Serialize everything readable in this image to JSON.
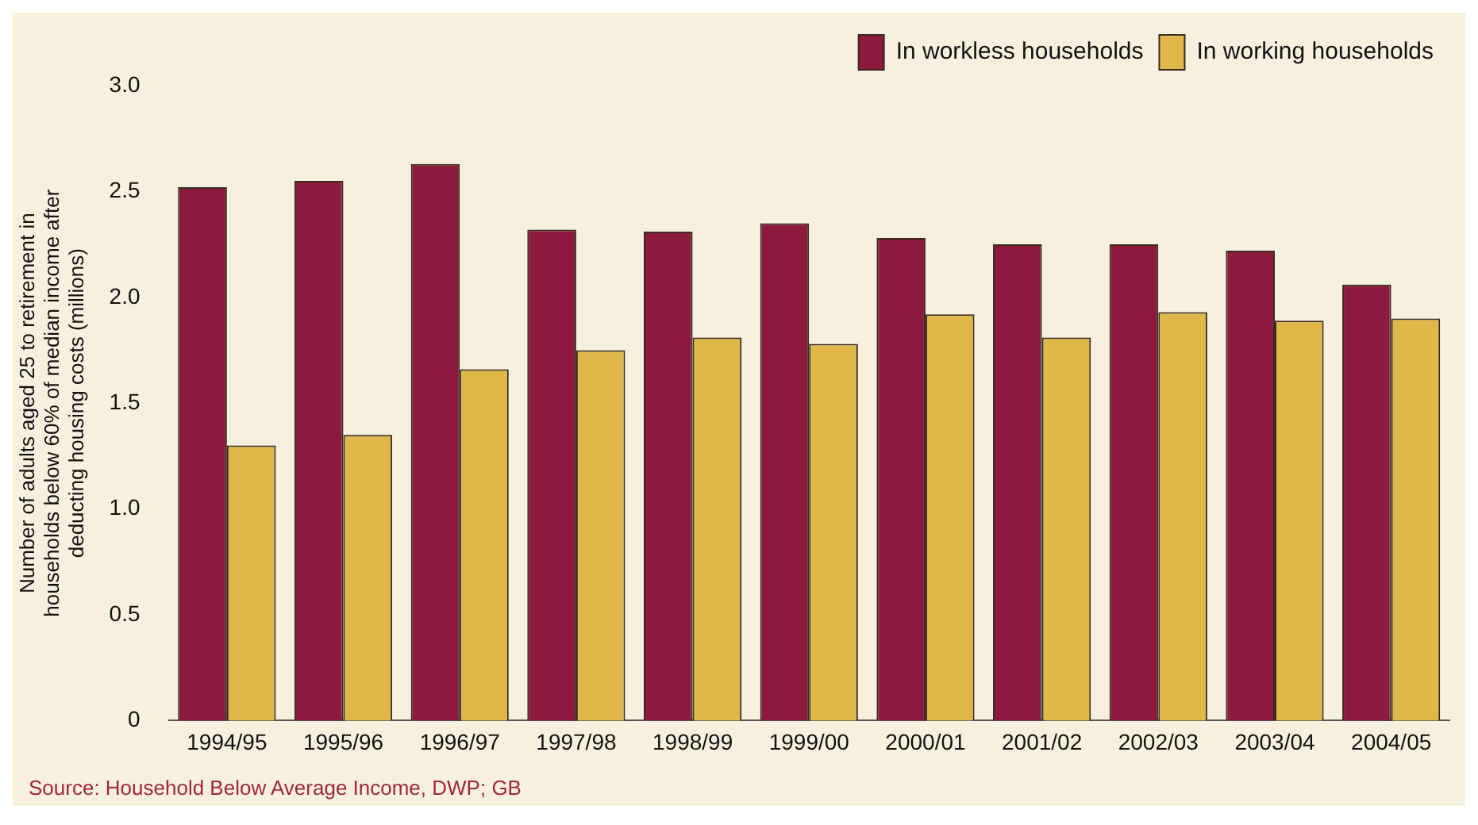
{
  "chart_data": {
    "type": "bar",
    "ylabel": "Number of adults aged 25 to retirement in households below 60% of median income after deducting housing costs (millions)",
    "categories": [
      "1994/95",
      "1995/96",
      "1996/97",
      "1997/98",
      "1998/99",
      "1999/00",
      "2000/01",
      "2001/02",
      "2002/03",
      "2003/04",
      "2004/05"
    ],
    "series": [
      {
        "name": "In workless households",
        "color": "#8b1a3e",
        "values": [
          2.52,
          2.55,
          2.63,
          2.32,
          2.31,
          2.35,
          2.28,
          2.25,
          2.25,
          2.22,
          2.06
        ]
      },
      {
        "name": "In working households",
        "color": "#e0b84a",
        "values": [
          1.3,
          1.35,
          1.66,
          1.75,
          1.81,
          1.78,
          1.92,
          1.81,
          1.93,
          1.89,
          1.9
        ]
      }
    ],
    "ylim": [
      0,
      3.0
    ],
    "yticks": [
      0,
      0.5,
      {
        "value": 1,
        "label": "1.0"
      },
      1.5,
      {
        "value": 2,
        "label": "2.0"
      },
      2.5,
      {
        "value": 3,
        "label": "3.0"
      }
    ],
    "grid": false,
    "legend": "top right",
    "annotations": [
      "Source: Household Below Average Income, DWP; GB"
    ]
  }
}
